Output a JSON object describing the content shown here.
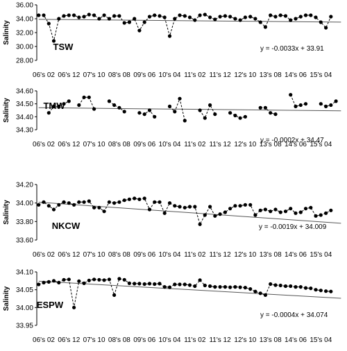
{
  "chart_data": [
    {
      "type": "line",
      "title": "TSW",
      "ylabel": "Salinity",
      "ylim": [
        28.0,
        36.0
      ],
      "yticks": [
        "28.00",
        "30.00",
        "32.00",
        "34.00",
        "36.00"
      ],
      "xticks": [
        "06's 02",
        "06's 12",
        "07's 10",
        "08's 08",
        "09's 06",
        "10's 04",
        "11's 02",
        "11's 12",
        "12's 10",
        "13's 08",
        "14's 06",
        "15's 04"
      ],
      "xrange": [
        0,
        118
      ],
      "tick_positions": [
        0,
        10,
        20,
        30,
        40,
        50,
        60,
        70,
        80,
        90,
        100,
        110
      ],
      "equation": "y = -0.0033x + 33.91",
      "trend": {
        "slope": -0.0033,
        "intercept": 33.91
      },
      "series": [
        {
          "values": [
            [
              -2,
              34.5
            ],
            [
              0,
              34.5
            ],
            [
              2,
              33.3
            ],
            [
              4,
              30.8
            ],
            [
              6,
              34.0
            ],
            [
              8,
              34.4
            ],
            [
              10,
              34.5
            ],
            [
              12,
              34.5
            ],
            [
              14,
              34.2
            ],
            [
              16,
              34.3
            ],
            [
              18,
              34.6
            ],
            [
              20,
              34.5
            ],
            [
              22,
              34.0
            ],
            [
              24,
              34.5
            ],
            [
              26,
              34.0
            ],
            [
              28,
              34.4
            ],
            [
              30,
              34.4
            ],
            [
              32,
              33.4
            ],
            [
              34,
              33.5
            ],
            [
              36,
              34.0
            ],
            [
              38,
              32.3
            ],
            [
              40,
              33.5
            ],
            [
              42,
              34.3
            ],
            [
              44,
              34.5
            ],
            [
              46,
              34.4
            ],
            [
              48,
              34.2
            ],
            [
              50,
              31.5
            ],
            [
              52,
              34.0
            ],
            [
              54,
              34.5
            ],
            [
              56,
              34.4
            ],
            [
              58,
              34.2
            ],
            [
              60,
              33.8
            ],
            [
              62,
              34.5
            ],
            [
              64,
              34.6
            ],
            [
              66,
              34.2
            ],
            [
              68,
              33.9
            ],
            [
              70,
              34.3
            ],
            [
              72,
              34.4
            ],
            [
              74,
              34.3
            ],
            [
              76,
              34.0
            ],
            [
              78,
              33.8
            ],
            [
              80,
              34.2
            ],
            [
              82,
              34.3
            ],
            [
              84,
              34.0
            ],
            [
              86,
              33.5
            ],
            [
              88,
              32.8
            ],
            [
              90,
              34.5
            ],
            [
              92,
              34.3
            ],
            [
              94,
              34.5
            ],
            [
              96,
              34.4
            ],
            [
              98,
              33.8
            ],
            [
              100,
              34.0
            ],
            [
              102,
              34.3
            ],
            [
              104,
              34.5
            ],
            [
              106,
              34.5
            ],
            [
              108,
              34.2
            ],
            [
              110,
              33.5
            ],
            [
              112,
              32.7
            ],
            [
              114,
              34.3
            ]
          ]
        }
      ]
    },
    {
      "type": "line",
      "title": "TMW",
      "ylabel": "Salinity",
      "ylim": [
        34.3,
        34.6
      ],
      "yticks": [
        "34.30",
        "34.40",
        "34.50",
        "34.60"
      ],
      "xticks": [
        "06's 02",
        "06's 12",
        "07's 10",
        "08's 08",
        "09's 06",
        "10's 04",
        "11's 02",
        "11's 12",
        "12's 10",
        "13's 08",
        "14's 06",
        "15's 04"
      ],
      "xrange": [
        0,
        118
      ],
      "tick_positions": [
        0,
        10,
        20,
        30,
        40,
        50,
        60,
        70,
        80,
        90,
        100,
        110
      ],
      "equation": "y = -0.0002x + 34.47",
      "trend": {
        "slope": -0.0002,
        "intercept": 34.47
      },
      "series": [
        {
          "values": [
            [
              2,
              34.43
            ],
            [
              4,
              34.48
            ],
            [
              6,
              34.48
            ],
            [
              8,
              34.5
            ],
            [
              10,
              34.52
            ],
            [
              null,
              null
            ],
            [
              14,
              34.49
            ],
            [
              16,
              34.55
            ],
            [
              18,
              34.55
            ],
            [
              20,
              34.46
            ],
            [
              null,
              null
            ],
            [
              26,
              34.52
            ],
            [
              28,
              34.49
            ],
            [
              30,
              34.47
            ],
            [
              32,
              34.44
            ],
            [
              null,
              null
            ],
            [
              38,
              34.43
            ],
            [
              40,
              34.42
            ],
            [
              42,
              34.45
            ],
            [
              44,
              34.4
            ],
            [
              null,
              null
            ],
            [
              50,
              34.48
            ],
            [
              52,
              34.44
            ],
            [
              54,
              34.54
            ],
            [
              56,
              34.37
            ],
            [
              null,
              null
            ],
            [
              62,
              34.45
            ],
            [
              64,
              34.39
            ],
            [
              66,
              34.49
            ],
            [
              68,
              34.42
            ],
            [
              null,
              null
            ],
            [
              74,
              34.43
            ],
            [
              76,
              34.41
            ],
            [
              78,
              34.39
            ],
            [
              80,
              34.4
            ],
            [
              null,
              null
            ],
            [
              86,
              34.47
            ],
            [
              88,
              34.47
            ],
            [
              90,
              34.43
            ],
            [
              92,
              34.42
            ],
            [
              null,
              null
            ],
            [
              98,
              34.57
            ],
            [
              100,
              34.48
            ],
            [
              102,
              34.49
            ],
            [
              104,
              34.5
            ],
            [
              null,
              null
            ],
            [
              110,
              34.5
            ],
            [
              112,
              34.48
            ],
            [
              114,
              34.49
            ],
            [
              116,
              34.52
            ]
          ]
        }
      ]
    },
    {
      "type": "line",
      "title": "NKCW",
      "ylabel": "Salinity",
      "ylim": [
        33.6,
        34.2
      ],
      "yticks": [
        "33.60",
        "33.80",
        "34.00",
        "34.20"
      ],
      "xticks": [
        "06's 02",
        "06's 12",
        "07's 10",
        "08's 08",
        "09's 06",
        "10's 04",
        "11's 02",
        "11's 12",
        "12's 10",
        "13's 08",
        "14's 06",
        "15's 04"
      ],
      "xrange": [
        0,
        118
      ],
      "tick_positions": [
        0,
        10,
        20,
        30,
        40,
        50,
        60,
        70,
        80,
        90,
        100,
        110
      ],
      "equation": "y = -0.0019x + 34.009",
      "trend": {
        "slope": -0.0019,
        "intercept": 34.009
      },
      "series": [
        {
          "values": [
            [
              -2,
              33.98
            ],
            [
              0,
              34.01
            ],
            [
              2,
              33.97
            ],
            [
              4,
              33.93
            ],
            [
              6,
              33.98
            ],
            [
              8,
              34.01
            ],
            [
              10,
              34.0
            ],
            [
              12,
              33.98
            ],
            [
              14,
              34.01
            ],
            [
              16,
              34.01
            ],
            [
              18,
              34.02
            ],
            [
              20,
              33.95
            ],
            [
              22,
              33.95
            ],
            [
              24,
              33.91
            ],
            [
              26,
              34.01
            ],
            [
              28,
              34.0
            ],
            [
              30,
              34.01
            ],
            [
              32,
              34.03
            ],
            [
              34,
              34.04
            ],
            [
              36,
              34.05
            ],
            [
              38,
              34.04
            ],
            [
              40,
              34.05
            ],
            [
              42,
              33.93
            ],
            [
              44,
              34.01
            ],
            [
              46,
              34.01
            ],
            [
              48,
              33.89
            ],
            [
              50,
              34.0
            ],
            [
              52,
              33.97
            ],
            [
              54,
              33.96
            ],
            [
              56,
              33.95
            ],
            [
              58,
              33.96
            ],
            [
              60,
              33.96
            ],
            [
              62,
              33.77
            ],
            [
              64,
              33.87
            ],
            [
              66,
              33.96
            ],
            [
              68,
              33.86
            ],
            [
              70,
              33.88
            ],
            [
              72,
              33.9
            ],
            [
              74,
              33.94
            ],
            [
              76,
              33.97
            ],
            [
              78,
              33.97
            ],
            [
              80,
              33.98
            ],
            [
              82,
              33.98
            ],
            [
              84,
              33.87
            ],
            [
              86,
              33.92
            ],
            [
              88,
              33.93
            ],
            [
              90,
              33.91
            ],
            [
              92,
              33.93
            ],
            [
              94,
              33.9
            ],
            [
              96,
              33.91
            ],
            [
              98,
              33.94
            ],
            [
              100,
              33.89
            ],
            [
              102,
              33.9
            ],
            [
              104,
              33.94
            ],
            [
              106,
              33.95
            ],
            [
              108,
              33.86
            ],
            [
              110,
              33.87
            ],
            [
              112,
              33.89
            ],
            [
              114,
              33.92
            ]
          ]
        }
      ]
    },
    {
      "type": "line",
      "title": "ESPW",
      "ylabel": "Salinity",
      "ylim": [
        33.95,
        34.1
      ],
      "yticks": [
        "33.95",
        "34.00",
        "34.05",
        "34.10"
      ],
      "xticks": [
        "06's 02",
        "06's 12",
        "07's 10",
        "08's 08",
        "09's 06",
        "10's 04",
        "11's 02",
        "11's 12",
        "12's 10",
        "13's 08",
        "14's 06",
        "15's 04"
      ],
      "xrange": [
        0,
        118
      ],
      "tick_positions": [
        0,
        10,
        20,
        30,
        40,
        50,
        60,
        70,
        80,
        90,
        100,
        110
      ],
      "equation": "y = -0.0004x + 34.074",
      "trend": {
        "slope": -0.0004,
        "intercept": 34.074
      },
      "series": [
        {
          "values": [
            [
              -2,
              34.065
            ],
            [
              0,
              34.07
            ],
            [
              2,
              34.072
            ],
            [
              4,
              34.075
            ],
            [
              6,
              34.07
            ],
            [
              8,
              34.078
            ],
            [
              10,
              34.079
            ],
            [
              12,
              34.0
            ],
            [
              14,
              34.074
            ],
            [
              16,
              34.068
            ],
            [
              18,
              34.076
            ],
            [
              20,
              34.079
            ],
            [
              22,
              34.078
            ],
            [
              24,
              34.077
            ],
            [
              26,
              34.079
            ],
            [
              28,
              34.035
            ],
            [
              30,
              34.081
            ],
            [
              32,
              34.078
            ],
            [
              34,
              34.068
            ],
            [
              36,
              34.067
            ],
            [
              38,
              34.067
            ],
            [
              40,
              34.066
            ],
            [
              42,
              34.067
            ],
            [
              44,
              34.066
            ],
            [
              46,
              34.067
            ],
            [
              48,
              34.058
            ],
            [
              50,
              34.057
            ],
            [
              52,
              34.065
            ],
            [
              54,
              34.065
            ],
            [
              56,
              34.065
            ],
            [
              58,
              34.063
            ],
            [
              60,
              34.06
            ],
            [
              62,
              34.077
            ],
            [
              64,
              34.062
            ],
            [
              66,
              34.06
            ],
            [
              68,
              34.058
            ],
            [
              70,
              34.058
            ],
            [
              72,
              34.058
            ],
            [
              74,
              34.057
            ],
            [
              76,
              34.058
            ],
            [
              78,
              34.057
            ],
            [
              80,
              34.056
            ],
            [
              82,
              34.052
            ],
            [
              84,
              34.045
            ],
            [
              86,
              34.04
            ],
            [
              88,
              34.035
            ],
            [
              90,
              34.066
            ],
            [
              92,
              34.063
            ],
            [
              94,
              34.062
            ],
            [
              96,
              34.06
            ],
            [
              98,
              34.06
            ],
            [
              100,
              34.058
            ],
            [
              102,
              34.058
            ],
            [
              104,
              34.055
            ],
            [
              106,
              34.054
            ],
            [
              108,
              34.05
            ],
            [
              110,
              34.048
            ],
            [
              112,
              34.046
            ],
            [
              114,
              34.045
            ]
          ]
        }
      ]
    }
  ]
}
